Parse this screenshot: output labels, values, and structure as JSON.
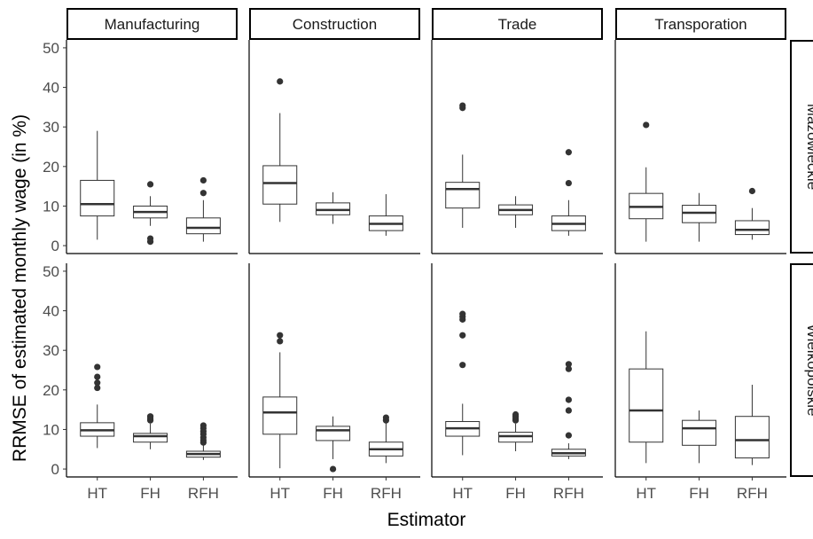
{
  "chart_data": {
    "type": "boxplot",
    "xlabel": "Estimator",
    "ylabel": "RRMSE of estimated monthly wage (in %)",
    "ylim": [
      -2,
      52
    ],
    "yticks": [
      0,
      10,
      20,
      30,
      40,
      50
    ],
    "facet_columns": [
      "Manufacturing",
      "Construction",
      "Trade",
      "Transporation"
    ],
    "facet_rows": [
      "Mazowieckie",
      "Wielkopolskie"
    ],
    "categories": [
      "HT",
      "FH",
      "RFH"
    ],
    "panels": [
      {
        "row": "Mazowieckie",
        "col": "Manufacturing",
        "boxes": [
          {
            "estimator": "HT",
            "min": 1.5,
            "q1": 7.5,
            "median": 10.5,
            "q3": 16.5,
            "max": 29,
            "outliers": []
          },
          {
            "estimator": "FH",
            "min": 5,
            "q1": 7,
            "median": 8.5,
            "q3": 10,
            "max": 12.5,
            "outliers": [
              1,
              1.8,
              15.5
            ]
          },
          {
            "estimator": "RFH",
            "min": 1,
            "q1": 3,
            "median": 4.5,
            "q3": 7,
            "max": 11.5,
            "outliers": [
              13.3,
              16.5
            ]
          }
        ]
      },
      {
        "row": "Mazowieckie",
        "col": "Construction",
        "boxes": [
          {
            "estimator": "HT",
            "min": 6,
            "q1": 10.5,
            "median": 15.8,
            "q3": 20.2,
            "max": 33.5,
            "outliers": [
              41.5
            ]
          },
          {
            "estimator": "FH",
            "min": 5.5,
            "q1": 7.8,
            "median": 9,
            "q3": 10.8,
            "max": 13.5,
            "outliers": []
          },
          {
            "estimator": "RFH",
            "min": 2.5,
            "q1": 3.8,
            "median": 5.5,
            "q3": 7.5,
            "max": 13,
            "outliers": []
          }
        ]
      },
      {
        "row": "Mazowieckie",
        "col": "Trade",
        "boxes": [
          {
            "estimator": "HT",
            "min": 4.5,
            "q1": 9.5,
            "median": 14.3,
            "q3": 16,
            "max": 23,
            "outliers": [
              34.8,
              35.4
            ]
          },
          {
            "estimator": "FH",
            "min": 4.5,
            "q1": 7.8,
            "median": 9,
            "q3": 10.3,
            "max": 12.5,
            "outliers": []
          },
          {
            "estimator": "RFH",
            "min": 2.5,
            "q1": 3.8,
            "median": 5.5,
            "q3": 7.5,
            "max": 11.5,
            "outliers": [
              15.8,
              23.6
            ]
          }
        ]
      },
      {
        "row": "Mazowieckie",
        "col": "Transporation",
        "boxes": [
          {
            "estimator": "HT",
            "min": 1,
            "q1": 6.8,
            "median": 9.8,
            "q3": 13.2,
            "max": 19.8,
            "outliers": [
              30.5
            ]
          },
          {
            "estimator": "FH",
            "min": 1,
            "q1": 5.8,
            "median": 8.3,
            "q3": 10.2,
            "max": 13.3,
            "outliers": []
          },
          {
            "estimator": "RFH",
            "min": 1.5,
            "q1": 2.8,
            "median": 4,
            "q3": 6.3,
            "max": 9.5,
            "outliers": [
              13.8
            ]
          }
        ]
      },
      {
        "row": "Wielkopolskie",
        "col": "Manufacturing",
        "boxes": [
          {
            "estimator": "HT",
            "min": 5.3,
            "q1": 8.3,
            "median": 9.8,
            "q3": 11.7,
            "max": 16.3,
            "outliers": [
              20.5,
              21.8,
              23.3,
              25.8
            ]
          },
          {
            "estimator": "FH",
            "min": 5,
            "q1": 6.8,
            "median": 8.3,
            "q3": 9,
            "max": 11.5,
            "outliers": [
              12.3,
              12.8,
              13.3
            ]
          },
          {
            "estimator": "RFH",
            "min": 2.3,
            "q1": 3,
            "median": 3.8,
            "q3": 4.5,
            "max": 6,
            "outliers": [
              6.7,
              7.3,
              8,
              8.8,
              9.5,
              10.3,
              11
            ]
          }
        ]
      },
      {
        "row": "Wielkopolskie",
        "col": "Construction",
        "boxes": [
          {
            "estimator": "HT",
            "min": 0.2,
            "q1": 8.8,
            "median": 14.3,
            "q3": 18.2,
            "max": 29.5,
            "outliers": [
              32.3,
              33.8
            ]
          },
          {
            "estimator": "FH",
            "min": 2.5,
            "q1": 7.2,
            "median": 9.8,
            "q3": 10.8,
            "max": 13.3,
            "outliers": [
              0
            ]
          },
          {
            "estimator": "RFH",
            "min": 1.5,
            "q1": 3.3,
            "median": 5,
            "q3": 6.8,
            "max": 11.8,
            "outliers": [
              12.3,
              13
            ]
          }
        ]
      },
      {
        "row": "Wielkopolskie",
        "col": "Trade",
        "boxes": [
          {
            "estimator": "HT",
            "min": 3.5,
            "q1": 8.3,
            "median": 10.3,
            "q3": 12,
            "max": 16.5,
            "outliers": [
              26.3,
              33.8,
              37.8,
              38.5,
              39.2
            ]
          },
          {
            "estimator": "FH",
            "min": 4.5,
            "q1": 6.8,
            "median": 8.3,
            "q3": 9.3,
            "max": 11.5,
            "outliers": [
              12.3,
              12.8,
              13.3,
              13.8
            ]
          },
          {
            "estimator": "RFH",
            "min": 2.5,
            "q1": 3.3,
            "median": 4,
            "q3": 5,
            "max": 6.5,
            "outliers": [
              8.5,
              14.8,
              17.5,
              25.3,
              26.5
            ]
          }
        ]
      },
      {
        "row": "Wielkopolskie",
        "col": "Transporation",
        "boxes": [
          {
            "estimator": "HT",
            "min": 1.5,
            "q1": 6.8,
            "median": 14.8,
            "q3": 25.3,
            "max": 34.8,
            "outliers": []
          },
          {
            "estimator": "FH",
            "min": 1.5,
            "q1": 6,
            "median": 10.3,
            "q3": 12.3,
            "max": 14.8,
            "outliers": []
          },
          {
            "estimator": "RFH",
            "min": 1,
            "q1": 2.8,
            "median": 7.3,
            "q3": 13.3,
            "max": 21.3,
            "outliers": []
          }
        ]
      }
    ]
  }
}
